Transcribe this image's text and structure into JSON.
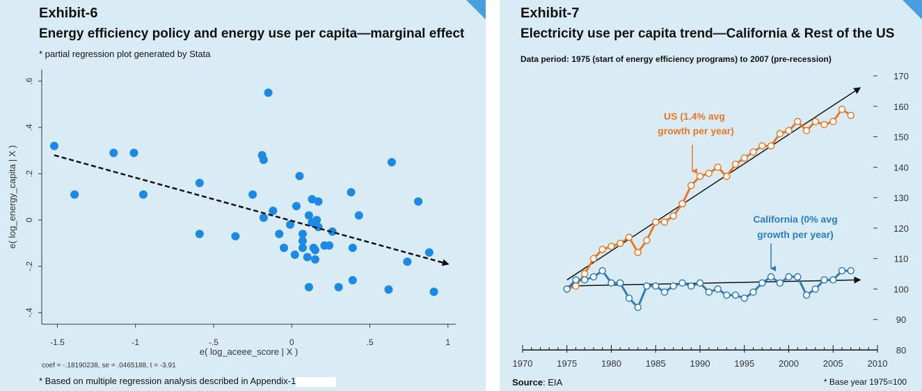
{
  "chart_data": [
    {
      "type": "scatter",
      "exhibit": "Exhibit-6",
      "title": "Energy efficiency policy and energy use per capita—marginal effect",
      "subtitle": "* partial regression plot generated by Stata",
      "xlabel": "e( log_aceee_score | X )",
      "ylabel": "e( log_energy_capita | X )",
      "xlim": [
        -1.6,
        1.05
      ],
      "ylim": [
        -0.45,
        0.65
      ],
      "xticks": [
        -1.5,
        -1,
        -0.5,
        0,
        0.5,
        1
      ],
      "xtick_labels": [
        "-1.5",
        "-1",
        "-.5",
        "0",
        ".5",
        "1"
      ],
      "yticks": [
        -0.4,
        -0.2,
        0,
        0.2,
        0.4,
        0.6
      ],
      "ytick_labels": [
        "-.4",
        "-.2",
        "0",
        ".2",
        ".4",
        ".6"
      ],
      "points": [
        [
          -1.52,
          0.32
        ],
        [
          -1.39,
          0.11
        ],
        [
          -1.14,
          0.29
        ],
        [
          -1.01,
          0.29
        ],
        [
          -0.95,
          0.11
        ],
        [
          -0.59,
          0.16
        ],
        [
          -0.59,
          -0.06
        ],
        [
          -0.36,
          -0.07
        ],
        [
          -0.25,
          0.11
        ],
        [
          -0.19,
          0.28
        ],
        [
          -0.18,
          0.26
        ],
        [
          -0.18,
          0.01
        ],
        [
          -0.15,
          0.55
        ],
        [
          -0.12,
          0.04
        ],
        [
          -0.08,
          -0.06
        ],
        [
          -0.05,
          -0.12
        ],
        [
          -0.01,
          -0.02
        ],
        [
          0.02,
          -0.15
        ],
        [
          0.03,
          0.06
        ],
        [
          0.05,
          0.19
        ],
        [
          0.07,
          -0.06
        ],
        [
          0.07,
          -0.09
        ],
        [
          0.07,
          -0.12
        ],
        [
          0.1,
          -0.16
        ],
        [
          0.11,
          0.02
        ],
        [
          0.13,
          -0.01
        ],
        [
          0.13,
          0.09
        ],
        [
          0.14,
          -0.12
        ],
        [
          0.15,
          -0.13
        ],
        [
          0.15,
          -0.17
        ],
        [
          0.16,
          0.0
        ],
        [
          0.17,
          0.08
        ],
        [
          0.17,
          -0.03
        ],
        [
          0.21,
          -0.11
        ],
        [
          0.11,
          -0.29
        ],
        [
          0.24,
          -0.11
        ],
        [
          0.26,
          -0.05
        ],
        [
          0.3,
          -0.29
        ],
        [
          0.38,
          0.12
        ],
        [
          0.39,
          -0.12
        ],
        [
          0.39,
          -0.26
        ],
        [
          0.43,
          0.02
        ],
        [
          0.62,
          -0.3
        ],
        [
          0.64,
          0.25
        ],
        [
          0.74,
          -0.18
        ],
        [
          0.81,
          0.08
        ],
        [
          0.88,
          -0.14
        ],
        [
          0.91,
          -0.31
        ]
      ],
      "fit_line": {
        "x": [
          -1.52,
          1.0
        ],
        "y": [
          0.28,
          -0.19
        ]
      },
      "note": "coef = -.18190238, se = .0465188, t = -3.91",
      "footnote": "* Based on multiple regression analysis described in Appendix-1",
      "colors": {
        "points": "#1a8ae6",
        "line": "#111111"
      }
    },
    {
      "type": "line",
      "exhibit": "Exhibit-7",
      "title": "Electricity use per capita trend—California & Rest of the US",
      "subtitle": "Data period: 1975 (start of energy efficiency programs) to 2007 (pre-recession)",
      "xlim": [
        1970,
        2010
      ],
      "ylim": [
        80,
        170
      ],
      "xticks": [
        1970,
        1975,
        1980,
        1985,
        1990,
        1995,
        2000,
        2005,
        2010
      ],
      "yticks": [
        80,
        90,
        100,
        110,
        120,
        130,
        140,
        150,
        160,
        170
      ],
      "x": [
        1975,
        1976,
        1977,
        1978,
        1979,
        1980,
        1981,
        1982,
        1983,
        1984,
        1985,
        1986,
        1987,
        1988,
        1989,
        1990,
        1991,
        1992,
        1993,
        1994,
        1995,
        1996,
        1997,
        1998,
        1999,
        2000,
        2001,
        2002,
        2003,
        2004,
        2005,
        2006,
        2007
      ],
      "series": [
        {
          "name": "US (1.4% avg growth per year)",
          "label_line1": "US (1.4% avg",
          "label_line2": "growth per year)",
          "color": "#e87722",
          "values": [
            100,
            101,
            105,
            110,
            113,
            114,
            115,
            117,
            112,
            116,
            122,
            122,
            124,
            128,
            134,
            137,
            138,
            140,
            137,
            141,
            143,
            145,
            147,
            147,
            151,
            152,
            155,
            152,
            155,
            154,
            155,
            159,
            157
          ]
        },
        {
          "name": "California (0% avg growth per year)",
          "label_line1": "California (0% avg",
          "label_line2": "growth per year)",
          "color": "#2a7cc0",
          "values": [
            100,
            103,
            103,
            104,
            106,
            102,
            102,
            97,
            94,
            101,
            101,
            99,
            101,
            102,
            101,
            102,
            99,
            100,
            98,
            98,
            97,
            99,
            102,
            104,
            102,
            104,
            104,
            98,
            100,
            103,
            103,
            106,
            106
          ]
        }
      ],
      "trend_lines": [
        {
          "x": [
            1975,
            2008
          ],
          "y": [
            103,
            166
          ]
        },
        {
          "x": [
            1975,
            2008
          ],
          "y": [
            101,
            103
          ]
        }
      ],
      "source_label": "Source",
      "source_value": ": EIA",
      "base_note": "* Base year 1975=100"
    }
  ]
}
